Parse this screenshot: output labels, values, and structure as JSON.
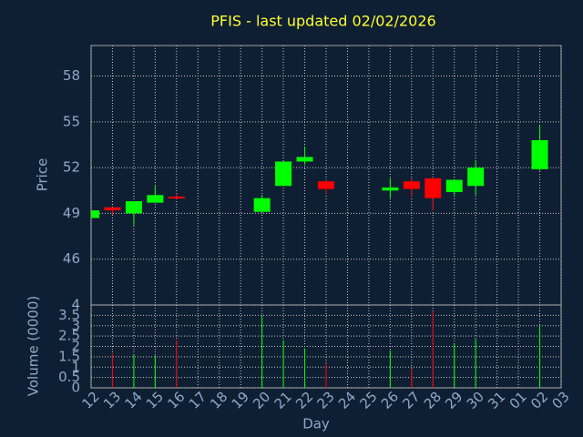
{
  "chart_data": [
    {
      "type": "candlestick",
      "title": "PFIS - last updated 02/02/2026",
      "ylabel": "Price",
      "categories": [
        "12",
        "13",
        "14",
        "15",
        "16",
        "17",
        "18",
        "19",
        "20",
        "21",
        "22",
        "23",
        "24",
        "25",
        "26",
        "27",
        "28",
        "29",
        "30",
        "31",
        "01",
        "02",
        "03"
      ],
      "open": [
        48.7,
        49.4,
        49.0,
        49.7,
        50.1,
        null,
        null,
        null,
        49.1,
        50.8,
        52.4,
        51.1,
        null,
        null,
        50.5,
        51.1,
        51.3,
        50.4,
        50.8,
        null,
        null,
        51.9,
        null
      ],
      "high": [
        49.2,
        49.4,
        49.8,
        50.8,
        50.3,
        null,
        null,
        null,
        50.2,
        52.4,
        53.4,
        51.2,
        null,
        null,
        51.3,
        51.3,
        51.3,
        51.2,
        52.5,
        null,
        null,
        54.8,
        null
      ],
      "low": [
        48.7,
        48.9,
        48.2,
        49.7,
        49.9,
        null,
        null,
        null,
        49.1,
        50.8,
        52.2,
        50.3,
        null,
        null,
        50.0,
        50.1,
        49.2,
        50.2,
        50.2,
        null,
        null,
        51.8,
        null
      ],
      "close": [
        49.2,
        49.2,
        49.8,
        50.2,
        50.0,
        null,
        null,
        null,
        50.0,
        52.4,
        52.7,
        50.6,
        null,
        null,
        50.7,
        50.6,
        50.0,
        51.2,
        52.0,
        null,
        null,
        53.8,
        null
      ],
      "up_color": "#00ff00",
      "down_color": "#ff0000",
      "ylim": [
        43,
        60
      ],
      "yticks": [
        46,
        49,
        52,
        55,
        58
      ],
      "grid": true
    },
    {
      "type": "bar",
      "ylabel": "Volume (0000)",
      "xlabel": "Day",
      "categories": [
        "12",
        "13",
        "14",
        "15",
        "16",
        "17",
        "18",
        "19",
        "20",
        "21",
        "22",
        "23",
        "24",
        "25",
        "26",
        "27",
        "28",
        "29",
        "30",
        "31",
        "01",
        "02",
        "03"
      ],
      "values": [
        null,
        1.65,
        1.6,
        1.55,
        2.3,
        null,
        null,
        null,
        3.5,
        2.3,
        1.9,
        1.2,
        null,
        null,
        1.8,
        0.9,
        3.7,
        2.15,
        2.35,
        null,
        null,
        3.0,
        null
      ],
      "ylim": [
        0,
        4
      ],
      "yticks": [
        0,
        0.5,
        1,
        1.5,
        2,
        2.5,
        3,
        3.5,
        4
      ],
      "grid": true
    }
  ]
}
